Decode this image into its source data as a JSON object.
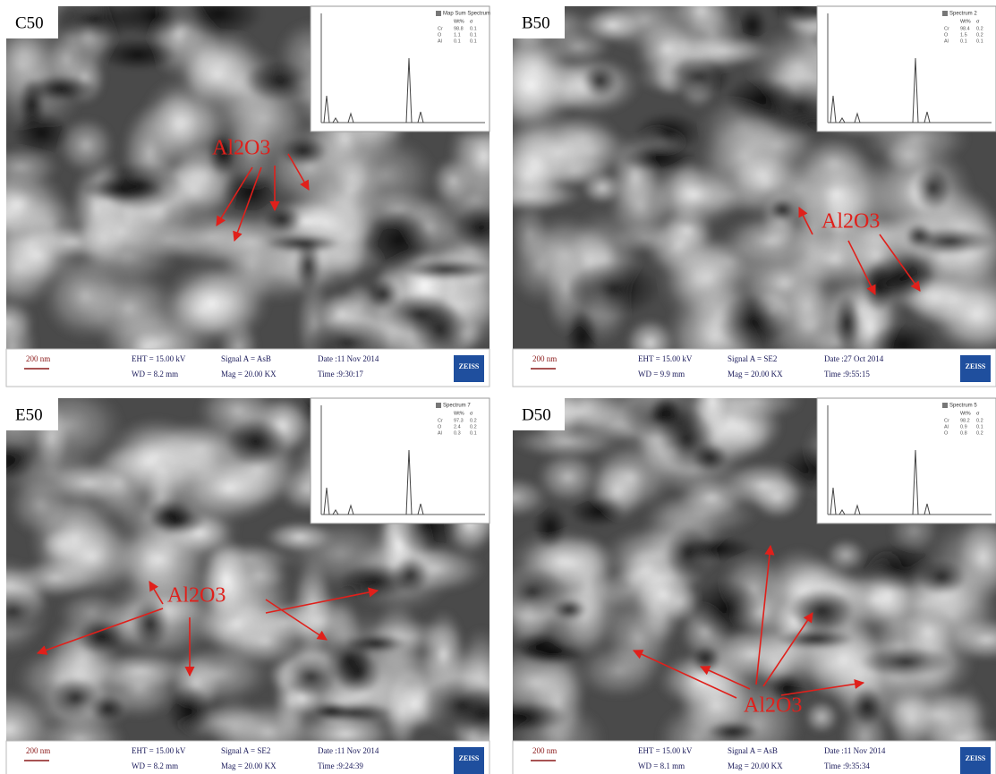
{
  "panels": [
    {
      "label": "C50",
      "annotation": "Al2O3",
      "spectrum": {
        "title": "Map Sum Spectrum",
        "header": [
          "Wt%",
          "σ"
        ],
        "rows": [
          [
            "Cr",
            "98.8",
            "0.1"
          ],
          [
            "O",
            "1.1",
            "0.1"
          ],
          [
            "Al",
            "0.1",
            "0.1"
          ]
        ]
      },
      "scale": "200 nm",
      "eht": "EHT = 15.00 kV",
      "wd": "WD = 8.2 mm",
      "signal": "Signal A = AsB",
      "mag": "Mag = 20.00 KX",
      "date": "Date :11 Nov 2014",
      "time": "Time :9:30:17",
      "logo": "ZEISS"
    },
    {
      "label": "B50",
      "annotation": "Al2O3",
      "spectrum": {
        "title": "Spectrum 2",
        "header": [
          "Wt%",
          "σ"
        ],
        "rows": [
          [
            "Cr",
            "98.4",
            "0.2"
          ],
          [
            "O",
            "1.5",
            "0.2"
          ],
          [
            "Al",
            "0.1",
            "0.1"
          ]
        ]
      },
      "scale": "200 nm",
      "eht": "EHT = 15.00 kV",
      "wd": "WD = 9.9 mm",
      "signal": "Signal A = SE2",
      "mag": "Mag = 20.00 KX",
      "date": "Date :27 Oct 2014",
      "time": "Time :9:55:15",
      "logo": "ZEISS"
    },
    {
      "label": "E50",
      "annotation": "Al2O3",
      "spectrum": {
        "title": "Spectrum 7",
        "header": [
          "Wt%",
          "σ"
        ],
        "rows": [
          [
            "Cr",
            "97.3",
            "0.2"
          ],
          [
            "O",
            "2.4",
            "0.2"
          ],
          [
            "Al",
            "0.3",
            "0.1"
          ]
        ]
      },
      "scale": "200 nm",
      "eht": "EHT = 15.00 kV",
      "wd": "WD = 8.2 mm",
      "signal": "Signal A = SE2",
      "mag": "Mag = 20.00 KX",
      "date": "Date :11 Nov 2014",
      "time": "Time :9:24:39",
      "logo": "ZEISS"
    },
    {
      "label": "D50",
      "annotation": "Al2O3",
      "spectrum": {
        "title": "Spectrum 5",
        "header": [
          "Wt%",
          "σ"
        ],
        "rows": [
          [
            "Cr",
            "98.2",
            "0.2"
          ],
          [
            "Al",
            "0.9",
            "0.1"
          ],
          [
            "O",
            "0.8",
            "0.2"
          ]
        ]
      },
      "scale": "200 nm",
      "eht": "EHT = 15.00 kV",
      "wd": "WD = 8.1 mm",
      "signal": "Signal A = AsB",
      "mag": "Mag = 20.00 KX",
      "date": "Date :11 Nov 2014",
      "time": "Time :9:35:34",
      "logo": "ZEISS"
    }
  ]
}
